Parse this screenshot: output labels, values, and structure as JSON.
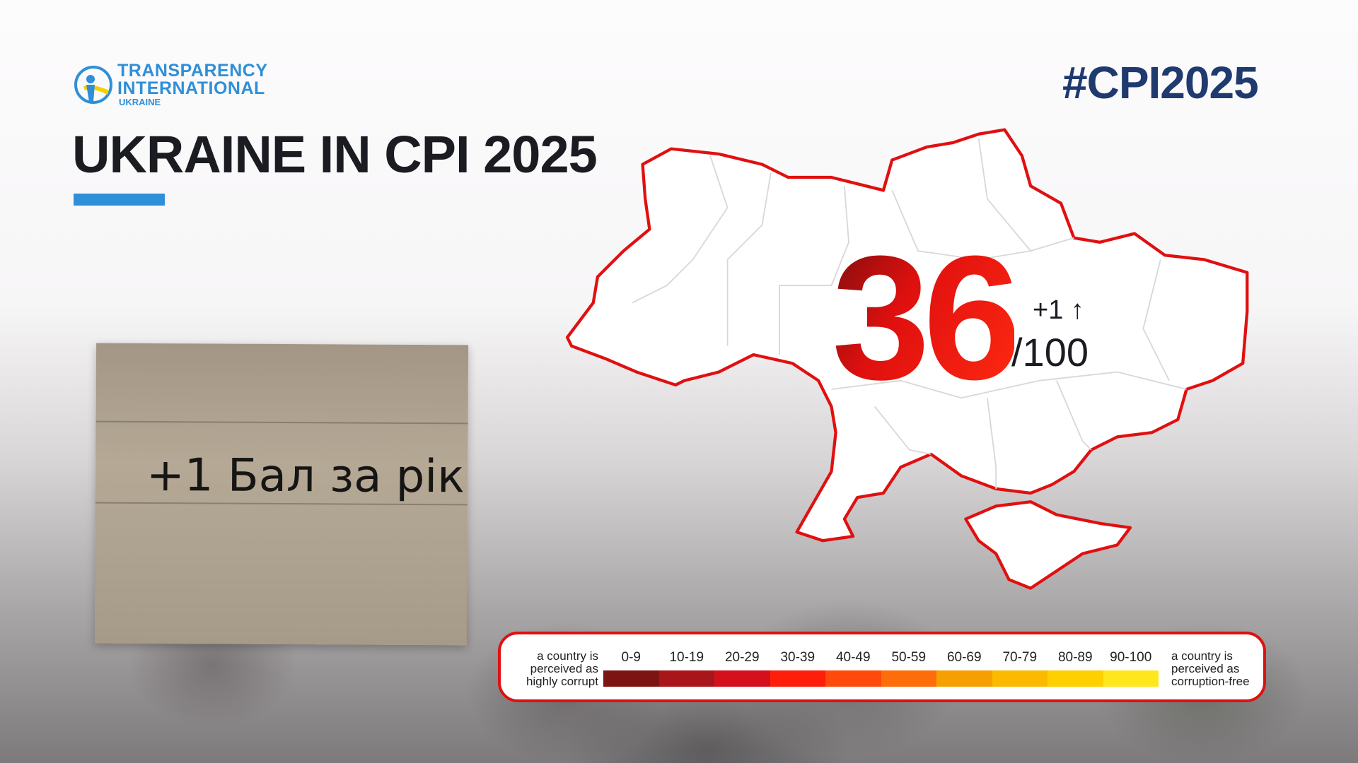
{
  "logo": {
    "line1": "TRANSPARENCY",
    "line2": "INTERNATIONAL",
    "line3": "UKRAINE"
  },
  "title": "UKRAINE IN CPI 2025",
  "hashtag": "#CPI2025",
  "score": {
    "value": "36",
    "change": "+1 ↑",
    "out_of": "/100"
  },
  "sign_text": "+1 Бал за рік",
  "legend": {
    "left_label": "a country is perceived as highly corrupt",
    "right_label": "a country is perceived as corruption-free",
    "ranges": [
      "0-9",
      "10-19",
      "20-29",
      "30-39",
      "40-49",
      "50-59",
      "60-69",
      "70-79",
      "80-89",
      "90-100"
    ],
    "colors": [
      "#7d1414",
      "#a8161c",
      "#d3101c",
      "#ff1e0a",
      "#ff4a0c",
      "#ff6c0a",
      "#f5a000",
      "#fbba00",
      "#ffd000",
      "#ffe71e"
    ]
  },
  "colors": {
    "accent_blue": "#2f8fd8",
    "map_outline": "#e01010",
    "hashtag": "#1f3a6e"
  }
}
